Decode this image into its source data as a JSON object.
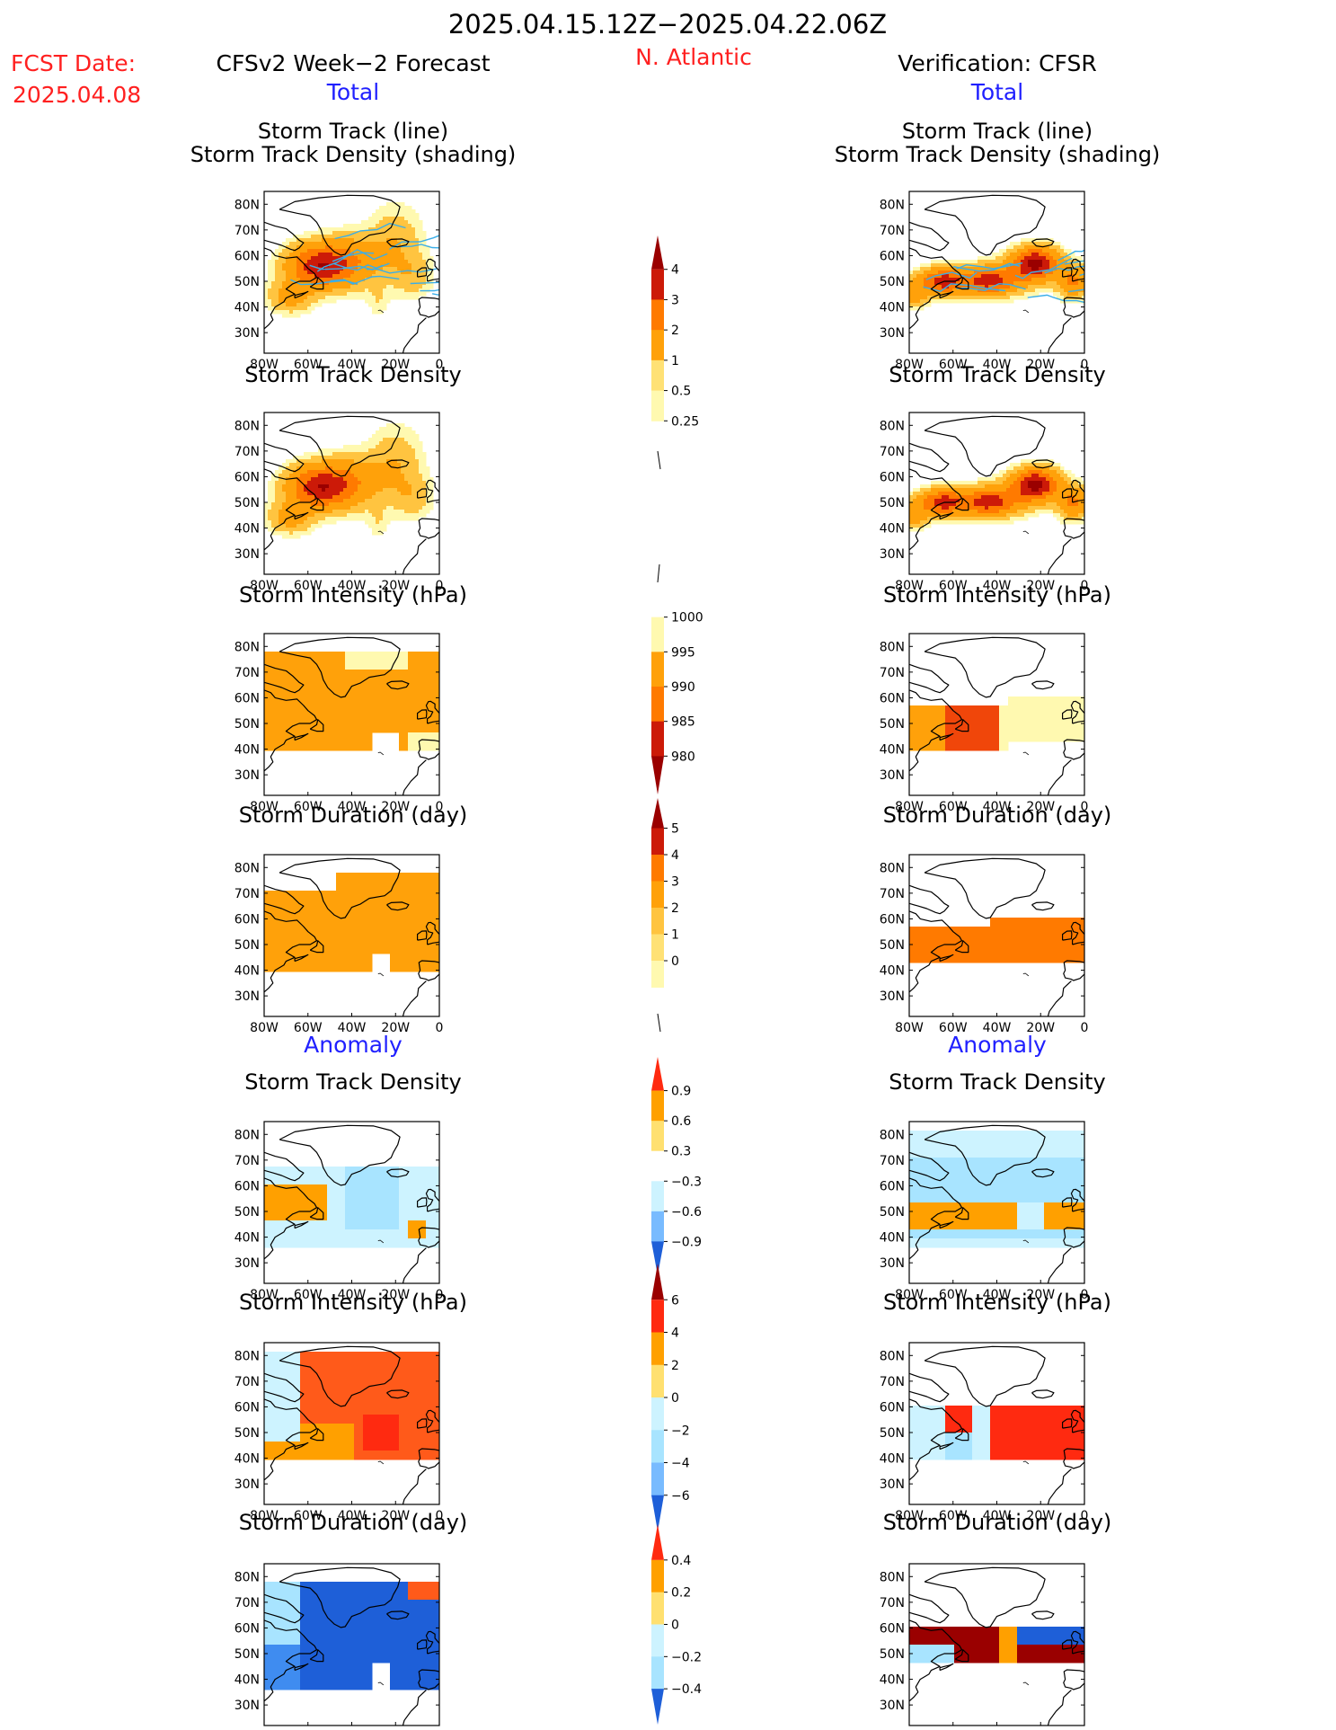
{
  "header": {
    "period": "2025.04.15.12Z−2025.04.22.06Z",
    "fcst_label": "FCST Date:",
    "fcst_date": "2025.04.08",
    "left_title": "CFSv2 Week−2 Forecast",
    "region": "N. Atlantic",
    "right_title": "Verification: CFSR",
    "total_label": "Total",
    "anomaly_label": "Anomaly"
  },
  "panel_titles": {
    "track_line": "Storm Track (line)",
    "track_shading": "Storm Track Density (shading)",
    "density": "Storm Track Density",
    "intensity": "Storm Intensity (hPa)",
    "duration": "Storm Duration (day)"
  },
  "axes": {
    "lat_labels": [
      "80N",
      "70N",
      "60N",
      "50N",
      "40N",
      "30N"
    ],
    "lon_labels": [
      "80W",
      "60W",
      "40W",
      "20W",
      "0"
    ]
  },
  "colors": {
    "warm": [
      "#fff9b0",
      "#ffe175",
      "#ffc440",
      "#ffa10a",
      "#ff7a00",
      "#f0460a",
      "#cc1a08",
      "#9a0000"
    ],
    "anom_pos": [
      "#ffe070",
      "#ffa000",
      "#ff5a1a",
      "#ff2a10",
      "#9a0000"
    ],
    "anom_neg": [
      "#cdf3ff",
      "#a8e4ff",
      "#78bbff",
      "#3f8cf0",
      "#1e5fd8"
    ],
    "track_line": "#3aaee8"
  },
  "colorbars": [
    {
      "id": "density",
      "labels": [
        "4",
        "3",
        "2",
        "1",
        "0.5",
        "0.25"
      ]
    },
    {
      "id": "intensity",
      "labels": [
        "1000",
        "995",
        "990",
        "985",
        "980"
      ]
    },
    {
      "id": "duration",
      "labels": [
        "5",
        "4",
        "3",
        "2",
        "1",
        "0"
      ]
    },
    {
      "id": "density_anom",
      "labels": [
        "0.9",
        "0.6",
        "0.3",
        "−0.3",
        "−0.6",
        "−0.9"
      ]
    },
    {
      "id": "intensity_anom",
      "labels": [
        "6",
        "4",
        "2",
        "0",
        "−2",
        "−4",
        "−6"
      ]
    },
    {
      "id": "duration_anom",
      "labels": [
        "0.4",
        "0.2",
        "0",
        "−0.2",
        "−0.4"
      ]
    }
  ],
  "chart_data": {
    "type": "heatmap",
    "panels": [
      {
        "id": "fc_track",
        "title": "Storm Track (line) / Storm Track Density (shading)",
        "source": "CFSv2 Week-2 Forecast",
        "section": "Total",
        "units": "density",
        "levels": [
          0.25,
          0.5,
          1,
          2,
          3,
          4
        ],
        "max_value": 4
      },
      {
        "id": "vr_track",
        "title": "Storm Track (line) / Storm Track Density (shading)",
        "source": "CFSR",
        "section": "Total",
        "units": "density",
        "levels": [
          0.25,
          0.5,
          1,
          2,
          3,
          4
        ],
        "max_value": 4
      },
      {
        "id": "fc_density",
        "title": "Storm Track Density",
        "source": "CFSv2 Week-2 Forecast",
        "section": "Total",
        "levels": [
          0.25,
          0.5,
          1,
          2,
          3,
          4
        ]
      },
      {
        "id": "vr_density",
        "title": "Storm Track Density",
        "source": "CFSR",
        "section": "Total",
        "levels": [
          0.25,
          0.5,
          1,
          2,
          3,
          4
        ]
      },
      {
        "id": "fc_intensity",
        "title": "Storm Intensity (hPa)",
        "source": "CFSv2 Week-2 Forecast",
        "section": "Total",
        "levels": [
          1000,
          995,
          990,
          985,
          980
        ]
      },
      {
        "id": "vr_intensity",
        "title": "Storm Intensity (hPa)",
        "source": "CFSR",
        "section": "Total",
        "levels": [
          1000,
          995,
          990,
          985,
          980
        ]
      },
      {
        "id": "fc_duration",
        "title": "Storm Duration (day)",
        "source": "CFSv2 Week-2 Forecast",
        "section": "Total",
        "levels": [
          0,
          1,
          2,
          3,
          4,
          5
        ]
      },
      {
        "id": "vr_duration",
        "title": "Storm Duration (day)",
        "source": "CFSR",
        "section": "Total",
        "levels": [
          0,
          1,
          2,
          3,
          4,
          5
        ]
      },
      {
        "id": "fc_density_anom",
        "title": "Storm Track Density",
        "source": "CFSv2 Week-2 Forecast",
        "section": "Anomaly",
        "levels": [
          -0.9,
          -0.6,
          -0.3,
          0.3,
          0.6,
          0.9
        ]
      },
      {
        "id": "vr_density_anom",
        "title": "Storm Track Density",
        "source": "CFSR",
        "section": "Anomaly",
        "levels": [
          -0.9,
          -0.6,
          -0.3,
          0.3,
          0.6,
          0.9
        ]
      },
      {
        "id": "fc_intensity_anom",
        "title": "Storm Intensity (hPa)",
        "source": "CFSv2 Week-2 Forecast",
        "section": "Anomaly",
        "levels": [
          -6,
          -4,
          -2,
          0,
          2,
          4,
          6
        ]
      },
      {
        "id": "vr_intensity_anom",
        "title": "Storm Intensity (hPa)",
        "source": "CFSR",
        "section": "Anomaly",
        "levels": [
          -6,
          -4,
          -2,
          0,
          2,
          4,
          6
        ]
      },
      {
        "id": "fc_duration_anom",
        "title": "Storm Duration (day)",
        "source": "CFSv2 Week-2 Forecast",
        "section": "Anomaly",
        "levels": [
          -0.4,
          -0.2,
          0,
          0.2,
          0.4
        ]
      },
      {
        "id": "vr_duration_anom",
        "title": "Storm Duration (day)",
        "source": "CFSR",
        "section": "Anomaly",
        "levels": [
          -0.4,
          -0.2,
          0,
          0.2,
          0.4
        ]
      }
    ],
    "lon_range": [
      -80,
      0
    ],
    "lat_range": [
      22,
      85
    ]
  }
}
